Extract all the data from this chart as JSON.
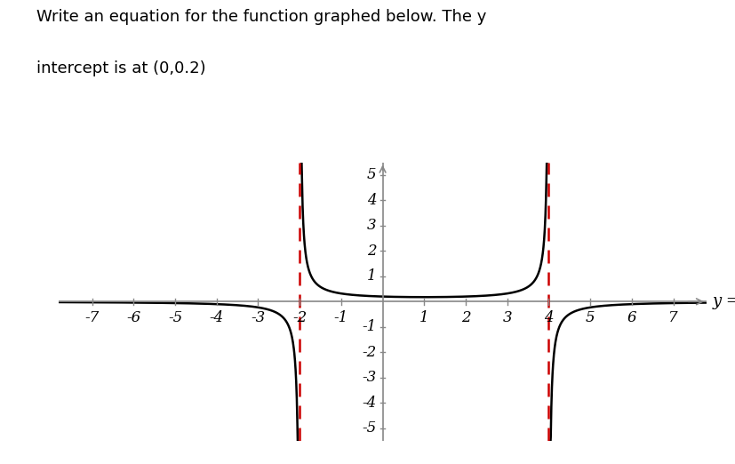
{
  "title_line1": "Write an equation for the function graphed below. The y",
  "title_line2": "intercept is at (0,0.2)",
  "title_fontsize": 13,
  "xlim": [
    -7.8,
    7.8
  ],
  "ylim": [
    -5.5,
    5.5
  ],
  "xticks": [
    -7,
    -6,
    -5,
    -4,
    -3,
    -2,
    -1,
    1,
    2,
    3,
    4,
    5,
    6,
    7
  ],
  "yticks": [
    -5,
    -4,
    -3,
    -2,
    -1,
    1,
    2,
    3,
    4,
    5
  ],
  "asymptote_x1": -2,
  "asymptote_x2": 4,
  "numerator": -1.6,
  "ylabel_text": "y =",
  "background_color": "#ffffff",
  "curve_color": "#000000",
  "asymptote_color": "#cc0000",
  "axis_color": "#888888",
  "tick_label_fontsize": 12
}
